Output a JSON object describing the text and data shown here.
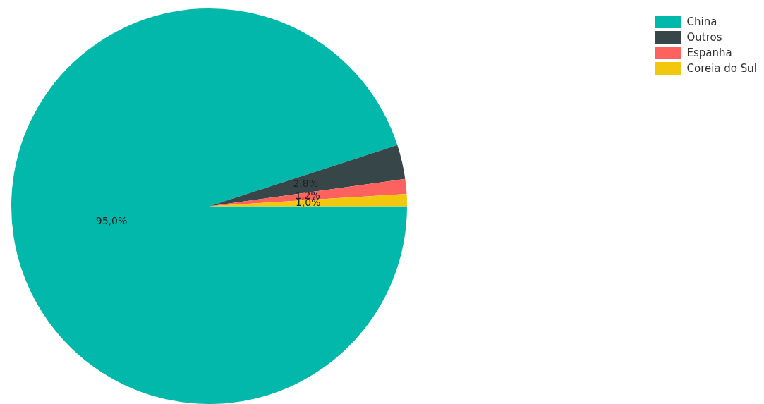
{
  "chart_data": {
    "type": "pie",
    "categories": [
      "China",
      "Outros",
      "Espanha",
      "Coreia do Sul"
    ],
    "values": [
      95.0,
      2.8,
      1.2,
      1.0
    ],
    "colors": [
      "#01b8aa",
      "#374649",
      "#fd625e",
      "#f2c80f"
    ],
    "value_labels": [
      "95,0%",
      "2,8%",
      "1,2%",
      "1,0%"
    ],
    "legend": "top right"
  }
}
